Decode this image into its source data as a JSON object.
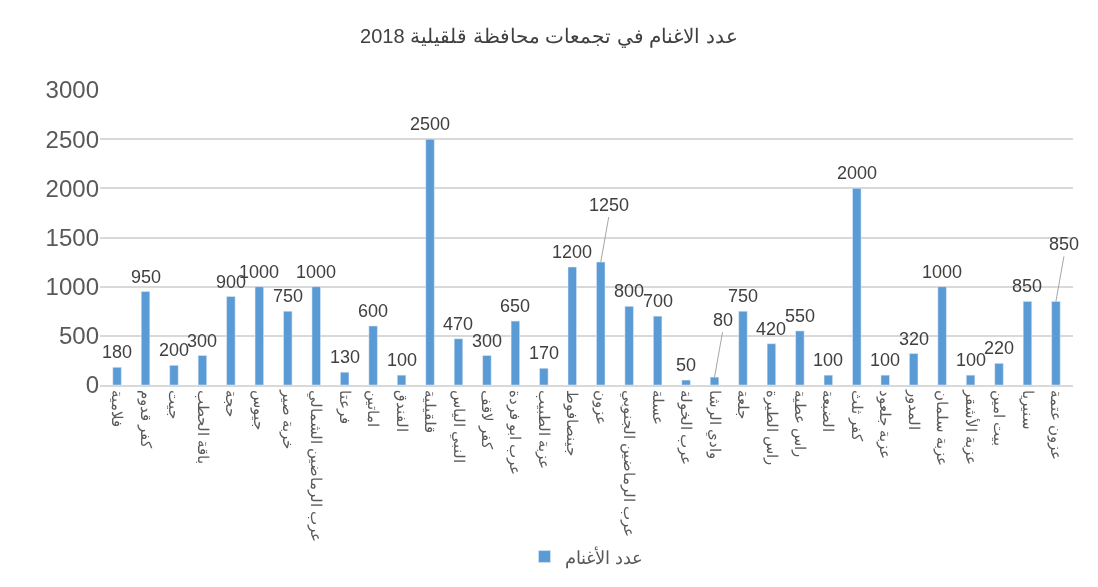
{
  "chart_data": {
    "type": "bar",
    "title": "عدد الاغنام في تجمعات محافظة قلقيلية 2018",
    "categories": [
      "فلامية",
      "كفر قدوم",
      "جيت",
      "باقة الحطب",
      "حجة",
      "جيوس",
      "خربة صير",
      "عرب الرماضين الشمالي",
      "فرعتا",
      "اماتين",
      "الفندق",
      "قلقيلية",
      "النبي الياس",
      "كفر لاقف",
      "عرب ابو فردة",
      "عزبة الطبيب",
      "جينصافوط",
      "عزون",
      "عرب الرماضين الجنوبي",
      "عسلة",
      "عرب الخولة",
      "وادي الرشا",
      "جلعة",
      "راس الطيرة",
      "راس عطية",
      "الضبعة",
      "كفر ثلث",
      "عزبة جلعود",
      "المدور",
      "عزبة سلمان",
      "عزبة الأشقر",
      "بيت امين",
      "سنيريا",
      "عزون عتمة"
    ],
    "series": [
      {
        "name": "عدد الأغنام",
        "color": "#5b9bd5",
        "values": [
          180,
          950,
          200,
          300,
          900,
          1000,
          750,
          1000,
          130,
          600,
          100,
          2500,
          470,
          300,
          650,
          170,
          1200,
          1250,
          800,
          700,
          50,
          80,
          750,
          420,
          550,
          100,
          2000,
          100,
          320,
          1000,
          100,
          220,
          850,
          850
        ]
      }
    ],
    "ylim": [
      0,
      3000
    ],
    "yticks": [
      0,
      500,
      1000,
      1500,
      2000,
      2500,
      3000
    ],
    "grid": "y",
    "legend": "bottom",
    "data_labels": true
  }
}
